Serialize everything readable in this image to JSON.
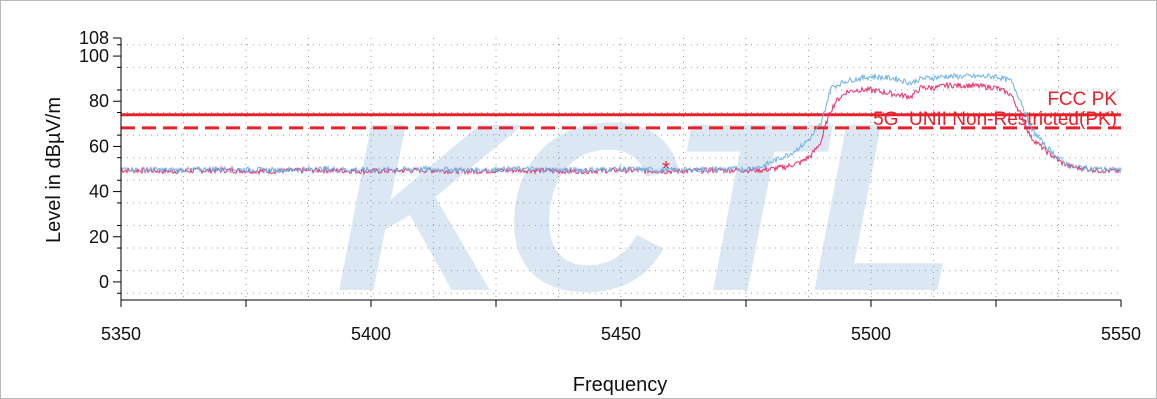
{
  "watermark": "KCTL",
  "colors": {
    "limit": "#e8202a",
    "trace_max": "#e8306b",
    "trace_avg": "#6fb2e6",
    "marker": "#e8202a"
  },
  "chart_data": {
    "type": "line",
    "xlabel": "Frequency",
    "ylabel": "Level in dBµV/m",
    "xlim": [
      5350,
      5550
    ],
    "ylim": [
      -8,
      108
    ],
    "x_ticks": [
      5350,
      5375,
      5400,
      5425,
      5450,
      5475,
      5500,
      5525,
      5550
    ],
    "x_tick_labels": [
      "5350",
      "5400",
      "5450",
      "5500",
      "5550"
    ],
    "x_tick_label_values": [
      5350,
      5400,
      5450,
      5500,
      5550
    ],
    "y_ticks": [
      0,
      20,
      40,
      60,
      80,
      100,
      108
    ],
    "y_tick_labels": [
      "0",
      "20",
      "40",
      "60",
      "80",
      "100",
      "108"
    ],
    "grid": true,
    "limits": [
      {
        "name": "FCC PK",
        "value": 74,
        "style": "solid"
      },
      {
        "name": "5G_UNII Non-Restricted(PK)",
        "value": 68.2,
        "style": "dashed"
      }
    ],
    "series": [
      {
        "style": "trace-max",
        "x": [
          5350,
          5360,
          5370,
          5380,
          5390,
          5400,
          5410,
          5420,
          5430,
          5440,
          5450,
          5460,
          5470,
          5475,
          5478,
          5480,
          5483,
          5486,
          5488,
          5490,
          5491,
          5492,
          5493,
          5495,
          5497,
          5500,
          5505,
          5508,
          5510,
          5513,
          5515,
          5520,
          5525,
          5528,
          5530,
          5532,
          5535,
          5538,
          5540,
          5545,
          5550
        ],
        "y": [
          49.5,
          49,
          49.5,
          49,
          49.5,
          49,
          49.5,
          49,
          49.5,
          49,
          49.5,
          49,
          49.5,
          49.5,
          49.5,
          50,
          51,
          53,
          56,
          62,
          70,
          76,
          80,
          84,
          85,
          85,
          83,
          82,
          86,
          86,
          87,
          87,
          86,
          83,
          74,
          64,
          58,
          53,
          51,
          49.5,
          49
        ]
      },
      {
        "style": "trace-avg",
        "x": [
          5350,
          5360,
          5370,
          5380,
          5390,
          5400,
          5410,
          5420,
          5430,
          5440,
          5450,
          5460,
          5470,
          5475,
          5478,
          5480,
          5482,
          5484,
          5486,
          5488,
          5490,
          5491,
          5492,
          5495,
          5500,
          5505,
          5508,
          5510,
          5515,
          5520,
          5525,
          5528,
          5530,
          5532,
          5535,
          5538,
          5540,
          5545,
          5550
        ],
        "y": [
          50,
          49.5,
          50,
          49.5,
          50,
          49.5,
          50,
          49.5,
          50,
          49.5,
          50,
          49.5,
          50,
          50,
          51,
          53,
          55,
          57,
          60,
          64,
          70,
          78,
          86,
          89,
          91,
          90,
          88,
          90,
          91,
          91,
          91,
          89,
          80,
          68,
          60,
          54,
          51,
          50,
          49.5
        ]
      }
    ],
    "markers": [
      {
        "x": 5459,
        "y": 50.5,
        "symbol": "*"
      }
    ]
  }
}
